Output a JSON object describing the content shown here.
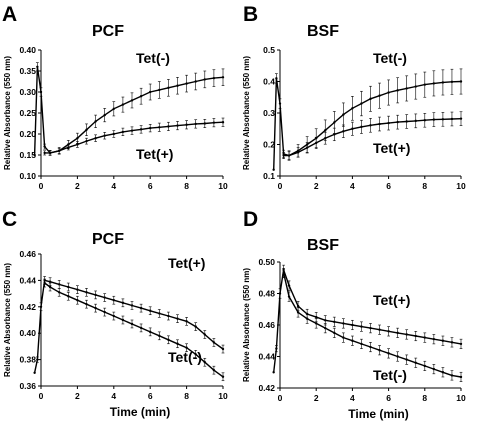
{
  "chart_data": [
    {
      "type": "line",
      "panel": "A",
      "title": "PCF",
      "ylabel": "Relative Absorbance (550 nm)",
      "xlabel": "",
      "xlim": [
        0,
        10
      ],
      "ylim": [
        0.1,
        0.4
      ],
      "xticks": [
        "0",
        "2",
        "4",
        "6",
        "8",
        "10"
      ],
      "yticks": [
        "0.10",
        "0.15",
        "0.20",
        "0.25",
        "0.30",
        "0.35",
        "0.40"
      ],
      "series": [
        {
          "name": "Tet(-)",
          "x": [
            -0.35,
            -0.2,
            0.0,
            0.2,
            0.5,
            1,
            1.5,
            2,
            2.5,
            3,
            3.5,
            4,
            4.5,
            5,
            5.5,
            6,
            6.5,
            7,
            7.5,
            8,
            8.5,
            9,
            9.5,
            10
          ],
          "y": [
            0.15,
            0.36,
            0.3,
            0.17,
            0.155,
            0.16,
            0.175,
            0.19,
            0.21,
            0.23,
            0.245,
            0.26,
            0.27,
            0.28,
            0.29,
            0.3,
            0.305,
            0.31,
            0.315,
            0.32,
            0.325,
            0.33,
            0.333,
            0.335
          ],
          "err": [
            0.0,
            0.01,
            0.01,
            0.006,
            0.006,
            0.008,
            0.01,
            0.012,
            0.014,
            0.015,
            0.016,
            0.017,
            0.018,
            0.018,
            0.019,
            0.019,
            0.02,
            0.02,
            0.02,
            0.02,
            0.02,
            0.02,
            0.02,
            0.02
          ]
        },
        {
          "name": "Tet(+)",
          "x": [
            0.2,
            0.5,
            1,
            1.5,
            2,
            2.5,
            3,
            3.5,
            4,
            4.5,
            5,
            5.5,
            6,
            6.5,
            7,
            7.5,
            8,
            8.5,
            9,
            9.5,
            10
          ],
          "y": [
            0.155,
            0.155,
            0.16,
            0.168,
            0.175,
            0.183,
            0.19,
            0.196,
            0.2,
            0.205,
            0.208,
            0.211,
            0.214,
            0.216,
            0.218,
            0.22,
            0.222,
            0.224,
            0.225,
            0.227,
            0.228
          ],
          "err": [
            0.005,
            0.005,
            0.006,
            0.006,
            0.007,
            0.007,
            0.008,
            0.008,
            0.008,
            0.009,
            0.009,
            0.009,
            0.009,
            0.01,
            0.01,
            0.01,
            0.01,
            0.01,
            0.01,
            0.01,
            0.01
          ]
        }
      ]
    },
    {
      "type": "line",
      "panel": "B",
      "title": "BSF",
      "ylabel": "Relative Absorbance (550 nm)",
      "xlabel": "",
      "xlim": [
        0,
        10
      ],
      "ylim": [
        0.1,
        0.5
      ],
      "xticks": [
        "0",
        "2",
        "4",
        "6",
        "8",
        "10"
      ],
      "yticks": [
        "0.1",
        "0.2",
        "0.3",
        "0.4",
        "0.5"
      ],
      "series": [
        {
          "name": "Tet(-)",
          "x": [
            -0.35,
            -0.2,
            0.0,
            0.2,
            0.5,
            1,
            1.5,
            2,
            2.5,
            3,
            3.5,
            4,
            4.5,
            5,
            5.5,
            6,
            6.5,
            7,
            7.5,
            8,
            8.5,
            9,
            9.5,
            10
          ],
          "y": [
            0.12,
            0.41,
            0.33,
            0.17,
            0.165,
            0.18,
            0.2,
            0.22,
            0.245,
            0.27,
            0.295,
            0.315,
            0.33,
            0.345,
            0.355,
            0.365,
            0.372,
            0.378,
            0.384,
            0.39,
            0.394,
            0.397,
            0.399,
            0.4
          ],
          "err": [
            0.0,
            0.015,
            0.015,
            0.012,
            0.015,
            0.02,
            0.025,
            0.03,
            0.033,
            0.035,
            0.037,
            0.038,
            0.039,
            0.04,
            0.04,
            0.04,
            0.04,
            0.04,
            0.04,
            0.04,
            0.04,
            0.04,
            0.04,
            0.04
          ]
        },
        {
          "name": "Tet(+)",
          "x": [
            0.2,
            0.5,
            1,
            1.5,
            2,
            2.5,
            3,
            3.5,
            4,
            4.5,
            5,
            5.5,
            6,
            6.5,
            7,
            7.5,
            8,
            8.5,
            9,
            9.5,
            10
          ],
          "y": [
            0.165,
            0.165,
            0.175,
            0.19,
            0.205,
            0.22,
            0.232,
            0.242,
            0.25,
            0.256,
            0.261,
            0.265,
            0.268,
            0.271,
            0.273,
            0.275,
            0.277,
            0.279,
            0.28,
            0.281,
            0.282
          ],
          "err": [
            0.01,
            0.012,
            0.015,
            0.017,
            0.018,
            0.019,
            0.02,
            0.02,
            0.021,
            0.021,
            0.022,
            0.022,
            0.022,
            0.022,
            0.022,
            0.022,
            0.022,
            0.022,
            0.022,
            0.022,
            0.022
          ]
        }
      ]
    },
    {
      "type": "line",
      "panel": "C",
      "title": "PCF",
      "ylabel": "Relative Absorbance (550 nm)",
      "xlabel": "Time (min)",
      "xlim": [
        0,
        10
      ],
      "ylim": [
        0.36,
        0.46
      ],
      "xticks": [
        "0",
        "2",
        "4",
        "6",
        "8",
        "10"
      ],
      "yticks": [
        "0.36",
        "0.38",
        "0.40",
        "0.42",
        "0.44",
        "0.46"
      ],
      "series": [
        {
          "name": "Tet(+)",
          "x": [
            -0.35,
            -0.2,
            0.0,
            0.2,
            0.5,
            1,
            1.5,
            2,
            2.5,
            3,
            3.5,
            4,
            4.5,
            5,
            5.5,
            6,
            6.5,
            7,
            7.5,
            8,
            8.5,
            9,
            9.5,
            10
          ],
          "y": [
            0.37,
            0.38,
            0.42,
            0.44,
            0.439,
            0.437,
            0.435,
            0.433,
            0.431,
            0.429,
            0.427,
            0.425,
            0.423,
            0.421,
            0.419,
            0.417,
            0.415,
            0.413,
            0.411,
            0.409,
            0.405,
            0.399,
            0.393,
            0.388
          ],
          "err": [
            0.0,
            0.002,
            0.003,
            0.003,
            0.003,
            0.003,
            0.003,
            0.003,
            0.003,
            0.003,
            0.003,
            0.003,
            0.003,
            0.003,
            0.003,
            0.003,
            0.003,
            0.003,
            0.003,
            0.003,
            0.003,
            0.003,
            0.003,
            0.003
          ]
        },
        {
          "name": "Tet(-)",
          "x": [
            0.2,
            0.5,
            1,
            1.5,
            2,
            2.5,
            3,
            3.5,
            4,
            4.5,
            5,
            5.5,
            6,
            6.5,
            7,
            7.5,
            8,
            8.5,
            9,
            9.5,
            10
          ],
          "y": [
            0.438,
            0.435,
            0.431,
            0.428,
            0.425,
            0.422,
            0.419,
            0.416,
            0.413,
            0.41,
            0.407,
            0.404,
            0.401,
            0.398,
            0.395,
            0.392,
            0.389,
            0.384,
            0.378,
            0.372,
            0.367
          ],
          "err": [
            0.003,
            0.003,
            0.003,
            0.003,
            0.003,
            0.003,
            0.003,
            0.003,
            0.003,
            0.003,
            0.003,
            0.003,
            0.003,
            0.003,
            0.003,
            0.003,
            0.003,
            0.003,
            0.003,
            0.003,
            0.003
          ]
        }
      ]
    },
    {
      "type": "line",
      "panel": "D",
      "title": "BSF",
      "ylabel": "Relative Absorbance (550 nm)",
      "xlabel": "Time (min)",
      "xlim": [
        0,
        10
      ],
      "ylim": [
        0.42,
        0.5
      ],
      "xticks": [
        "0",
        "2",
        "4",
        "6",
        "8",
        "10"
      ],
      "yticks": [
        "0.42",
        "0.44",
        "0.46",
        "0.48",
        "0.50"
      ],
      "series": [
        {
          "name": "Tet(+)",
          "x": [
            -0.35,
            -0.2,
            0.0,
            0.2,
            0.5,
            1,
            1.5,
            2,
            2.5,
            3,
            3.5,
            4,
            4.5,
            5,
            5.5,
            6,
            6.5,
            7,
            7.5,
            8,
            8.5,
            9,
            9.5,
            10
          ],
          "y": [
            0.43,
            0.445,
            0.48,
            0.495,
            0.485,
            0.472,
            0.467,
            0.465,
            0.463,
            0.462,
            0.461,
            0.46,
            0.459,
            0.458,
            0.457,
            0.456,
            0.455,
            0.454,
            0.453,
            0.452,
            0.451,
            0.45,
            0.449,
            0.448
          ],
          "err": [
            0.0,
            0.002,
            0.003,
            0.003,
            0.003,
            0.003,
            0.003,
            0.003,
            0.003,
            0.003,
            0.003,
            0.003,
            0.003,
            0.003,
            0.003,
            0.003,
            0.003,
            0.003,
            0.003,
            0.003,
            0.003,
            0.003,
            0.003,
            0.003
          ]
        },
        {
          "name": "Tet(-)",
          "x": [
            0.2,
            0.5,
            1,
            1.5,
            2,
            2.5,
            3,
            3.5,
            4,
            4.5,
            5,
            5.5,
            6,
            6.5,
            7,
            7.5,
            8,
            8.5,
            9,
            9.5,
            10
          ],
          "y": [
            0.493,
            0.478,
            0.468,
            0.464,
            0.461,
            0.458,
            0.455,
            0.452,
            0.45,
            0.448,
            0.446,
            0.444,
            0.442,
            0.44,
            0.438,
            0.436,
            0.434,
            0.432,
            0.43,
            0.428,
            0.427
          ],
          "err": [
            0.003,
            0.003,
            0.003,
            0.003,
            0.003,
            0.003,
            0.003,
            0.003,
            0.003,
            0.003,
            0.003,
            0.003,
            0.003,
            0.003,
            0.003,
            0.003,
            0.003,
            0.003,
            0.003,
            0.003,
            0.003
          ]
        }
      ]
    }
  ]
}
